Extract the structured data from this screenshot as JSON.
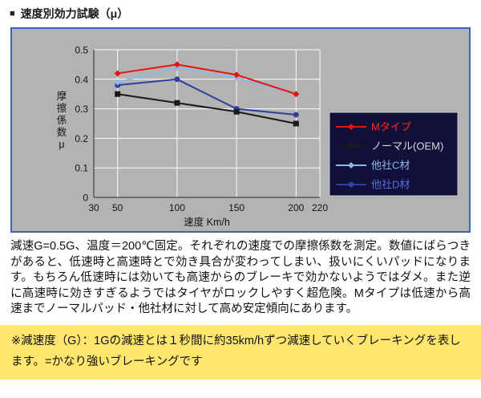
{
  "header": {
    "bullet": "■",
    "title": "速度別効力試験（μ）"
  },
  "chart_data": {
    "type": "line",
    "title": "",
    "xlabel": "速度 Km/h",
    "ylabel": "摩擦係数μ",
    "xlim": [
      30,
      220
    ],
    "ylim": [
      0,
      0.5
    ],
    "x_ticks": [
      30,
      50,
      100,
      150,
      200,
      220
    ],
    "y_ticks": [
      0,
      0.1,
      0.2,
      0.3,
      0.4,
      0.5
    ],
    "grid": true,
    "legend_position": "right",
    "plot_bg": "#b3b3b3",
    "legend_bg": "#10103a",
    "legend_border": "#c8c8c8",
    "x": [
      50,
      100,
      150,
      200
    ],
    "series": [
      {
        "name": "Mタイプ",
        "color": "#e8130c",
        "label_color": "#ff2a1a",
        "marker": "diamond",
        "values": [
          0.42,
          0.45,
          0.415,
          0.35
        ]
      },
      {
        "name": "ノーマル(OEM)",
        "color": "#1a1a1a",
        "label_color": "#d9d9d9",
        "marker": "square",
        "values": [
          0.35,
          0.32,
          0.29,
          0.25
        ]
      },
      {
        "name": "他社C材",
        "color": "#8cb8e8",
        "label_color": "#8cb8e8",
        "marker": "diamond",
        "values": [
          0.39,
          0.44,
          0.405,
          0.35
        ]
      },
      {
        "name": "他社D材",
        "color": "#2f3f9e",
        "label_color": "#5a6ede",
        "marker": "circle",
        "values": [
          0.38,
          0.4,
          0.3,
          0.28
        ]
      }
    ]
  },
  "description": "減速G=0.5G、温度＝200℃固定。それぞれの速度での摩擦係数を測定。数値にばらつきがあると、低速時と高速時とで効き具合が変わってしまい、扱いにくいパッドになります。もちろん低速時には効いても高速からのブレーキで効かないようではダメ。また逆に高速時に効きすぎるようではタイヤがロックしやすく超危険。Mタイプは低速から高速までノーマルパッド・他社材に対して高め安定傾向にあります。",
  "note": "※減速度（G）：1Gの減速とは１秒間に約35km/hずつ減速していくブレーキングを表します。=かなり強いブレーキングです"
}
